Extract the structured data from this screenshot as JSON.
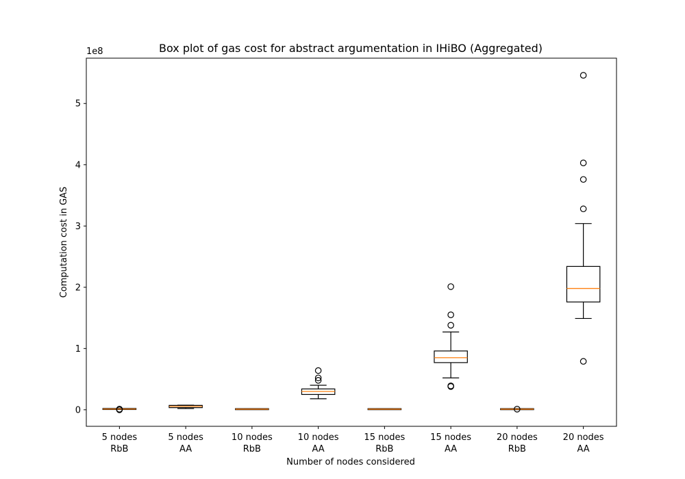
{
  "chart_data": {
    "type": "box",
    "title": "Box plot of gas cost for abstract argumentation in IHiBO (Aggregated)",
    "xlabel": "Number of nodes considered",
    "ylabel": "Computation cost in GAS",
    "y_multiplier": "1e8",
    "ylim": [
      -0.27,
      5.74
    ],
    "yticks": [
      0,
      1,
      2,
      3,
      4,
      5
    ],
    "ytick_labels": [
      "0",
      "1",
      "2",
      "3",
      "4",
      "5"
    ],
    "grid": false,
    "colors": {
      "box": "#000000",
      "median": "#ff7f0e",
      "outlier": "#000000"
    },
    "categories": [
      {
        "line1": "5 nodes",
        "line2": "RbB",
        "stats": {
          "whisker_low": 0.005,
          "q1": 0.01,
          "median": 0.012,
          "q3": 0.015,
          "whisker_high": 0.02
        },
        "outliers": [
          0.0,
          0.01
        ]
      },
      {
        "line1": "5 nodes",
        "line2": "AA",
        "stats": {
          "whisker_low": 0.02,
          "q1": 0.035,
          "median": 0.055,
          "q3": 0.072,
          "whisker_high": 0.075
        },
        "outliers": []
      },
      {
        "line1": "10 nodes",
        "line2": "RbB",
        "stats": {
          "whisker_low": 0.005,
          "q1": 0.008,
          "median": 0.01,
          "q3": 0.012,
          "whisker_high": 0.015
        },
        "outliers": []
      },
      {
        "line1": "10 nodes",
        "line2": "AA",
        "stats": {
          "whisker_low": 0.18,
          "q1": 0.25,
          "median": 0.3,
          "q3": 0.34,
          "whisker_high": 0.4
        },
        "outliers": [
          0.48,
          0.52,
          0.64
        ]
      },
      {
        "line1": "15 nodes",
        "line2": "RbB",
        "stats": {
          "whisker_low": 0.005,
          "q1": 0.008,
          "median": 0.01,
          "q3": 0.012,
          "whisker_high": 0.015
        },
        "outliers": []
      },
      {
        "line1": "15 nodes",
        "line2": "AA",
        "stats": {
          "whisker_low": 0.52,
          "q1": 0.77,
          "median": 0.85,
          "q3": 0.96,
          "whisker_high": 1.27
        },
        "outliers": [
          0.38,
          0.39,
          1.38,
          1.55,
          2.01
        ]
      },
      {
        "line1": "20 nodes",
        "line2": "RbB",
        "stats": {
          "whisker_low": 0.005,
          "q1": 0.008,
          "median": 0.01,
          "q3": 0.012,
          "whisker_high": 0.015
        },
        "outliers": [
          0.01
        ]
      },
      {
        "line1": "20 nodes",
        "line2": "AA",
        "stats": {
          "whisker_low": 1.49,
          "q1": 1.76,
          "median": 1.98,
          "q3": 2.34,
          "whisker_high": 3.04
        },
        "outliers": [
          0.79,
          3.28,
          3.76,
          4.03,
          5.46
        ]
      }
    ]
  }
}
